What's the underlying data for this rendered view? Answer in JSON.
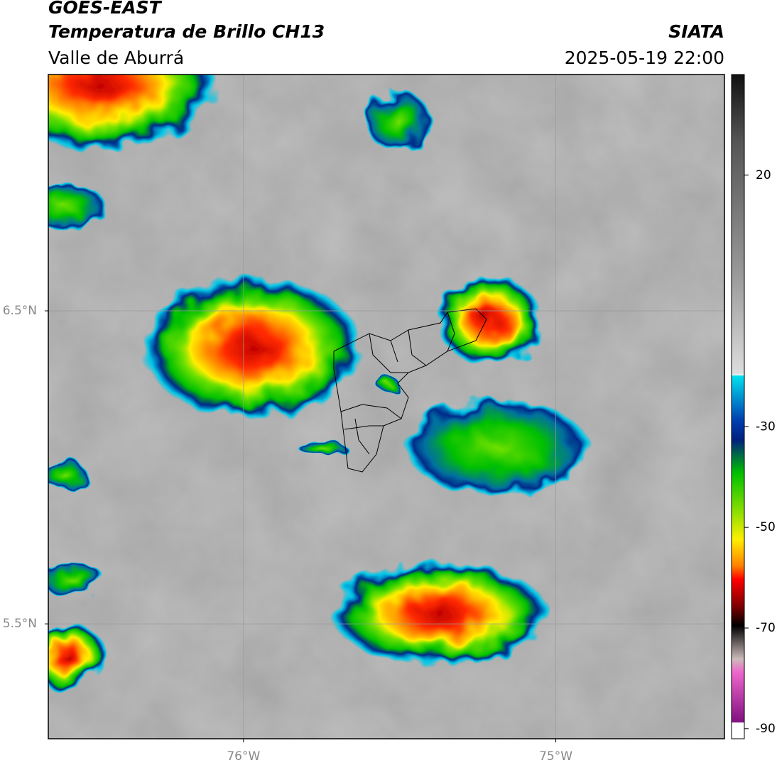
{
  "header": {
    "title": "GOES-EAST",
    "subtitle": "Temperatura de Brillo CH13",
    "region": "Valle de Aburrá",
    "source": "SIATA",
    "datetime": "2025-05-19 22:00"
  },
  "map": {
    "xlim": [
      -76.625,
      -74.46
    ],
    "ylim": [
      5.133,
      7.255
    ],
    "xticks": [
      {
        "value": -76,
        "label": "76°W"
      },
      {
        "value": -75,
        "label": "75°W"
      }
    ],
    "yticks": [
      {
        "value": 6.5,
        "label": "6.5°N"
      },
      {
        "value": 5.5,
        "label": "5.5°N"
      }
    ],
    "grid": true
  },
  "colorbar": {
    "ylim": [
      -92,
      40
    ],
    "yticks": [
      20,
      -30,
      -50,
      -70,
      -90
    ]
  }
}
